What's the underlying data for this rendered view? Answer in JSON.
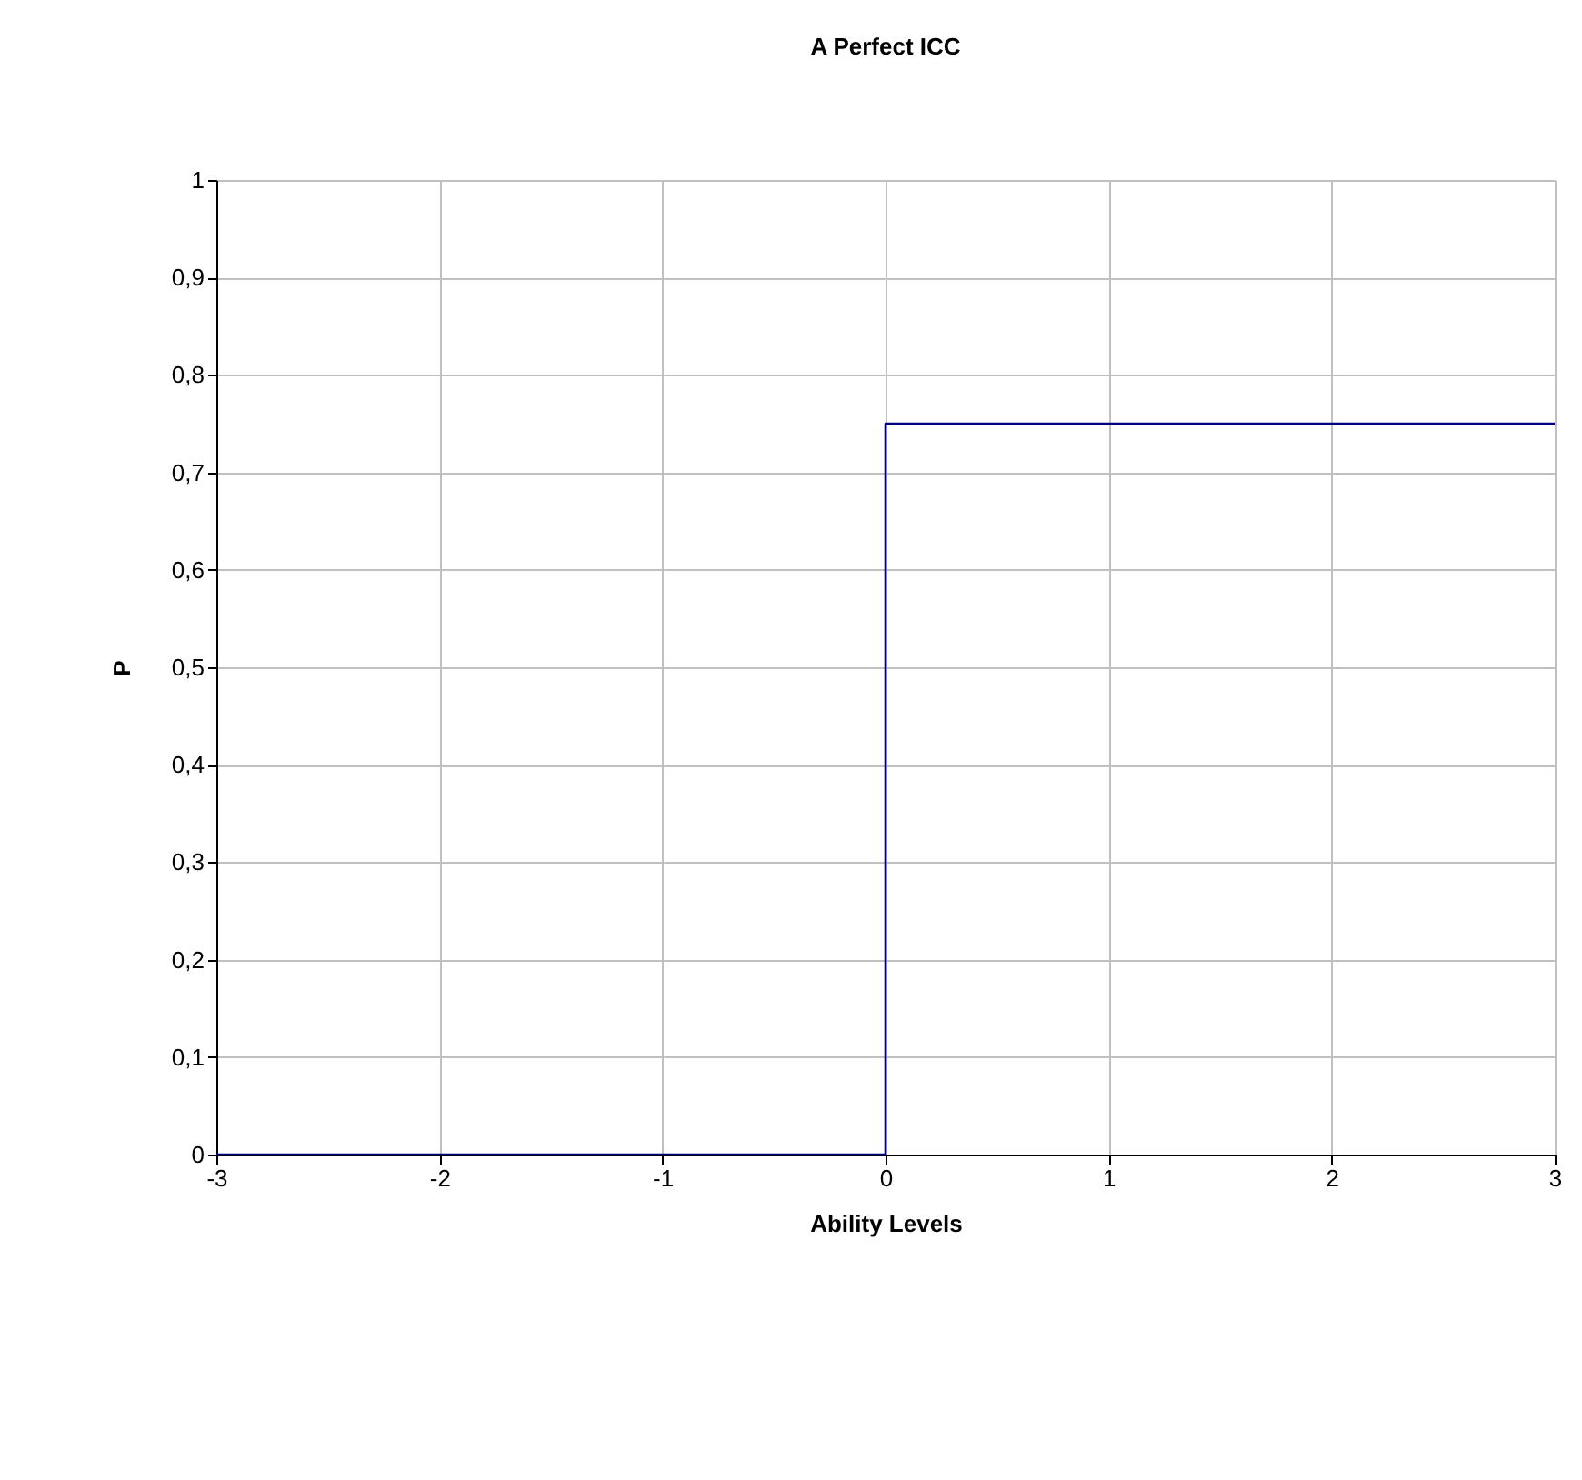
{
  "chart_data": {
    "type": "line",
    "title": "A Perfect ICC",
    "xlabel": "Ability Levels",
    "ylabel": "P",
    "x": [
      -3,
      -2,
      -1,
      0,
      0,
      1,
      2,
      3
    ],
    "series": [
      {
        "color": "#000080",
        "values": [
          0,
          0,
          0,
          0,
          0.75,
          0.75,
          0.75,
          0.75
        ]
      }
    ],
    "xlim": [
      -3,
      3
    ],
    "xticks": [
      -3,
      -2,
      -1,
      0,
      1,
      2,
      3
    ],
    "ylim": [
      0,
      1
    ],
    "yticks": [
      0,
      {
        "value": 0.1,
        "label": "0,1"
      },
      {
        "value": 0.2,
        "label": "0,2"
      },
      {
        "value": 0.3,
        "label": "0,3"
      },
      {
        "value": 0.4,
        "label": "0,4"
      },
      {
        "value": 0.5,
        "label": "0,5"
      },
      {
        "value": 0.6,
        "label": "0,6"
      },
      {
        "value": 0.7,
        "label": "0,7"
      },
      {
        "value": 0.8,
        "label": "0,8"
      },
      {
        "value": 0.9,
        "label": "0,9"
      },
      1
    ],
    "grid": true
  }
}
